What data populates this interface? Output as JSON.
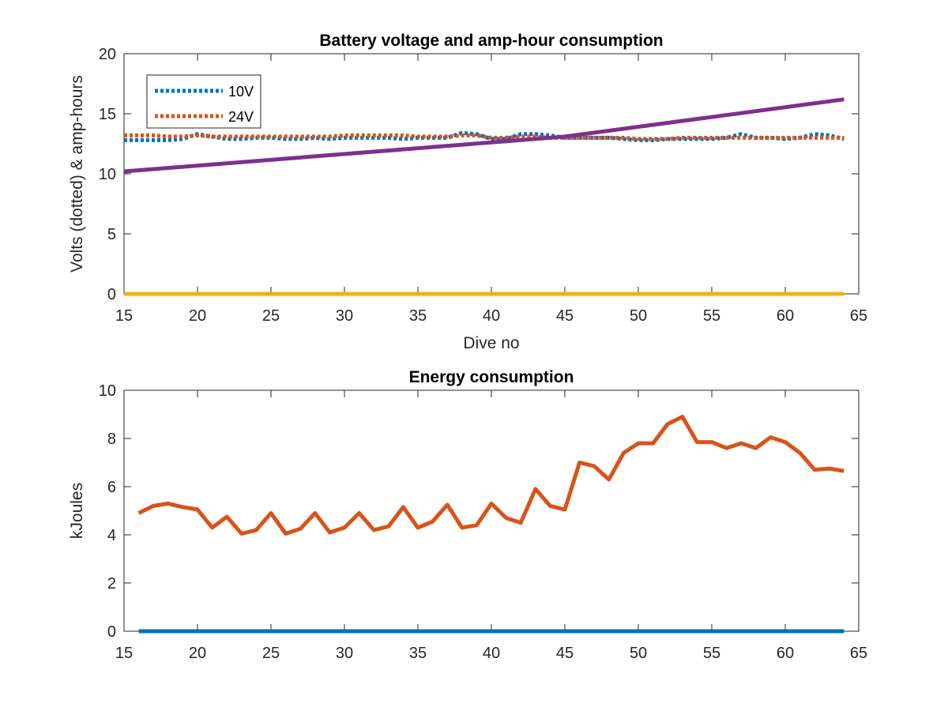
{
  "chart_data": [
    {
      "type": "line",
      "title": "Battery voltage and amp-hour consumption",
      "xlabel": "Dive no",
      "ylabel": "Volts (dotted) & amp-hours",
      "xlim": [
        15,
        65
      ],
      "ylim": [
        0,
        20
      ],
      "xticks": [
        15,
        20,
        25,
        30,
        35,
        40,
        45,
        50,
        55,
        60,
        65
      ],
      "yticks": [
        0,
        5,
        10,
        15,
        20
      ],
      "legend": {
        "placement": "top-left"
      },
      "series": [
        {
          "name": "10V",
          "style": "dotted",
          "color": "#0072BD",
          "x": [
            15,
            16,
            17,
            18,
            19,
            20,
            21,
            22,
            23,
            24,
            25,
            26,
            27,
            28,
            29,
            30,
            31,
            32,
            33,
            34,
            35,
            36,
            37,
            38,
            39,
            40,
            41,
            42,
            43,
            44,
            45,
            46,
            47,
            48,
            49,
            50,
            51,
            52,
            53,
            54,
            55,
            56,
            57,
            58,
            59,
            60,
            61,
            62,
            63,
            64
          ],
          "y": [
            12.8,
            12.8,
            12.8,
            12.8,
            12.9,
            13.3,
            13.1,
            12.9,
            12.9,
            13.0,
            13.0,
            12.9,
            12.9,
            13.0,
            12.9,
            13.0,
            13.0,
            13.0,
            13.0,
            12.9,
            13.0,
            13.0,
            13.0,
            13.4,
            13.3,
            12.9,
            12.9,
            13.3,
            13.3,
            13.2,
            13.0,
            13.0,
            13.0,
            13.0,
            12.9,
            12.8,
            12.8,
            12.9,
            12.9,
            12.9,
            12.9,
            13.0,
            13.3,
            13.0,
            13.0,
            12.9,
            13.0,
            13.3,
            13.2,
            12.9
          ]
        },
        {
          "name": "24V",
          "style": "dotted",
          "color": "#D95319",
          "x": [
            15,
            16,
            17,
            18,
            19,
            20,
            21,
            22,
            23,
            24,
            25,
            26,
            27,
            28,
            29,
            30,
            31,
            32,
            33,
            34,
            35,
            36,
            37,
            38,
            39,
            40,
            41,
            42,
            43,
            44,
            45,
            46,
            47,
            48,
            49,
            50,
            51,
            52,
            53,
            54,
            55,
            56,
            57,
            58,
            59,
            60,
            61,
            62,
            63,
            64
          ],
          "y": [
            13.2,
            13.2,
            13.2,
            13.1,
            13.1,
            13.2,
            13.1,
            13.1,
            13.1,
            13.1,
            13.1,
            13.1,
            13.1,
            13.1,
            13.1,
            13.2,
            13.2,
            13.2,
            13.2,
            13.2,
            13.1,
            13.1,
            13.1,
            13.2,
            13.2,
            13.0,
            13.0,
            13.1,
            13.1,
            13.0,
            13.0,
            13.0,
            13.0,
            13.0,
            13.0,
            12.9,
            12.9,
            12.9,
            13.0,
            13.0,
            13.0,
            13.0,
            13.0,
            13.0,
            13.0,
            13.0,
            13.0,
            13.0,
            13.0,
            13.0
          ]
        },
        {
          "style": "solid",
          "color": "#7E2F8E",
          "x": [
            15,
            45,
            64
          ],
          "y": [
            10.2,
            13.1,
            16.2
          ]
        },
        {
          "style": "solid",
          "color": "#EDB120",
          "x": [
            15,
            64
          ],
          "y": [
            0,
            0
          ]
        }
      ]
    },
    {
      "type": "line",
      "title": "Energy consumption",
      "xlabel": "",
      "ylabel": "kJoules",
      "xlim": [
        15,
        65
      ],
      "ylim": [
        0,
        10
      ],
      "xticks": [
        15,
        20,
        25,
        30,
        35,
        40,
        45,
        50,
        55,
        60,
        65
      ],
      "yticks": [
        0,
        2,
        4,
        6,
        8,
        10
      ],
      "series": [
        {
          "style": "solid",
          "color": "#D95319",
          "x": [
            16,
            17,
            18,
            19,
            20,
            21,
            22,
            23,
            24,
            25,
            26,
            27,
            28,
            29,
            30,
            31,
            32,
            33,
            34,
            35,
            36,
            37,
            38,
            39,
            40,
            41,
            42,
            43,
            44,
            45,
            46,
            47,
            48,
            49,
            50,
            51,
            52,
            53,
            54,
            55,
            56,
            57,
            58,
            59,
            60,
            61,
            62,
            63,
            64
          ],
          "y": [
            4.9,
            5.2,
            5.3,
            5.15,
            5.05,
            4.3,
            4.75,
            4.05,
            4.2,
            4.9,
            4.05,
            4.25,
            4.9,
            4.1,
            4.3,
            4.9,
            4.2,
            4.35,
            5.15,
            4.3,
            4.55,
            5.25,
            4.3,
            4.4,
            5.3,
            4.7,
            4.5,
            5.9,
            5.2,
            5.05,
            7.0,
            6.85,
            6.3,
            7.4,
            7.8,
            7.8,
            8.6,
            8.9,
            7.85,
            7.85,
            7.6,
            7.8,
            7.6,
            8.05,
            7.85,
            7.4,
            6.7,
            6.75,
            6.65
          ]
        },
        {
          "style": "solid",
          "color": "#0072BD",
          "x": [
            16,
            64
          ],
          "y": [
            0,
            0
          ]
        }
      ]
    }
  ]
}
